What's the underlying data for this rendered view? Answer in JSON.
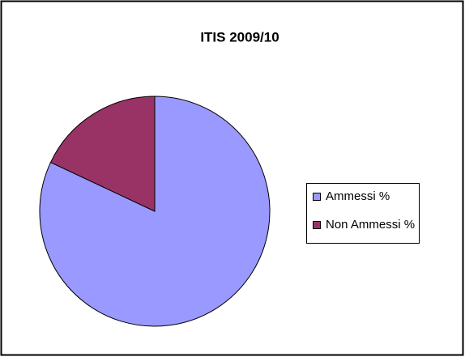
{
  "chart_data": {
    "type": "pie",
    "title": "ITIS 2009/10",
    "categories": [
      "Ammessi %",
      "Non Ammessi %"
    ],
    "values": [
      82,
      18
    ],
    "colors": [
      "#9999ff",
      "#993366"
    ],
    "legend": "right"
  }
}
